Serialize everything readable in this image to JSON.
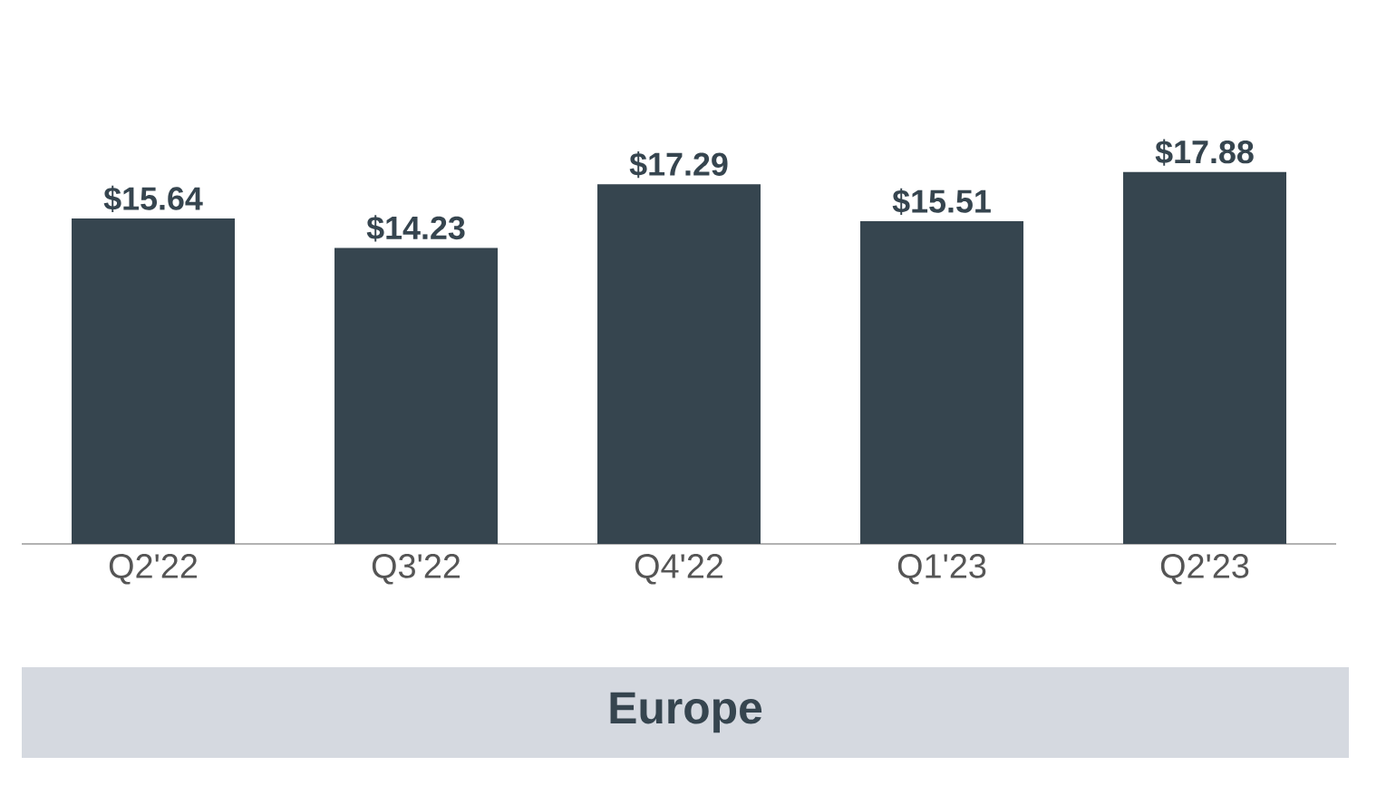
{
  "chart_data": {
    "type": "bar",
    "title": "Europe",
    "categories": [
      "Q2'22",
      "Q3'22",
      "Q4'22",
      "Q1'23",
      "Q2'23"
    ],
    "values": [
      15.64,
      14.23,
      17.29,
      15.51,
      17.88
    ],
    "value_labels": [
      "$15.64",
      "$14.23",
      "$17.29",
      "$15.51",
      "$17.88"
    ],
    "color": "#36454f"
  }
}
